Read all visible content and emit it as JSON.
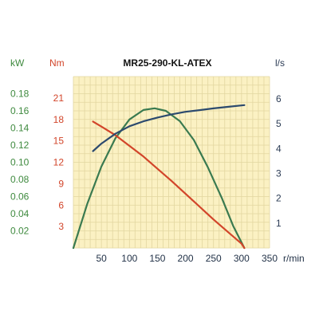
{
  "chart_data": {
    "type": "line",
    "title": "MR25-290-KL-ATEX",
    "x": {
      "unit": "r/min",
      "range": [
        0,
        350
      ],
      "ticks": [
        50,
        100,
        150,
        200,
        250,
        300,
        350
      ]
    },
    "axes": {
      "power": {
        "unit": "kW",
        "range": [
          0,
          0.2
        ],
        "ticks": [
          "0.02",
          "0.04",
          "0.06",
          "0.08",
          "0.10",
          "0.12",
          "0.14",
          "0.16",
          "0.18"
        ],
        "tick_values": [
          0.02,
          0.04,
          0.06,
          0.08,
          0.1,
          0.12,
          0.14,
          0.16,
          0.18
        ],
        "color": "#3f8a3f"
      },
      "torque": {
        "unit": "Nm",
        "range": [
          0,
          24
        ],
        "ticks": [
          "3",
          "6",
          "9",
          "12",
          "15",
          "18",
          "21"
        ],
        "tick_values": [
          3,
          6,
          9,
          12,
          15,
          18,
          21
        ],
        "color": "#d2452a"
      },
      "flow": {
        "unit": "l/s",
        "range": [
          0,
          6.9
        ],
        "ticks": [
          "1",
          "2",
          "3",
          "4",
          "5",
          "6"
        ],
        "tick_values": [
          1,
          2,
          3,
          4,
          5,
          6
        ],
        "color": "#2c3c55"
      }
    },
    "series": [
      {
        "axis": "power",
        "color": "#3a7a50",
        "points": [
          [
            0,
            0
          ],
          [
            25,
            0.052
          ],
          [
            50,
            0.095
          ],
          [
            75,
            0.128
          ],
          [
            100,
            0.15
          ],
          [
            125,
            0.161
          ],
          [
            145,
            0.163
          ],
          [
            165,
            0.16
          ],
          [
            190,
            0.148
          ],
          [
            215,
            0.126
          ],
          [
            240,
            0.094
          ],
          [
            265,
            0.058
          ],
          [
            285,
            0.026
          ],
          [
            305,
            0
          ]
        ]
      },
      {
        "axis": "torque",
        "color": "#d2452a",
        "points": [
          [
            35,
            17.7
          ],
          [
            50,
            17.0
          ],
          [
            75,
            15.8
          ],
          [
            100,
            14.3
          ],
          [
            125,
            12.8
          ],
          [
            150,
            11.1
          ],
          [
            175,
            9.4
          ],
          [
            200,
            7.6
          ],
          [
            225,
            5.8
          ],
          [
            250,
            4.0
          ],
          [
            275,
            2.3
          ],
          [
            300,
            0.6
          ],
          [
            305,
            0
          ]
        ]
      },
      {
        "axis": "flow",
        "color": "#2c4a6e",
        "points": [
          [
            35,
            3.9
          ],
          [
            50,
            4.2
          ],
          [
            75,
            4.6
          ],
          [
            100,
            4.9
          ],
          [
            125,
            5.1
          ],
          [
            150,
            5.25
          ],
          [
            175,
            5.38
          ],
          [
            200,
            5.48
          ],
          [
            225,
            5.55
          ],
          [
            250,
            5.62
          ],
          [
            275,
            5.68
          ],
          [
            305,
            5.75
          ]
        ]
      }
    ],
    "grid": true,
    "grid_color": "#e2d6a0",
    "plot_background": "#fbf1c3"
  }
}
